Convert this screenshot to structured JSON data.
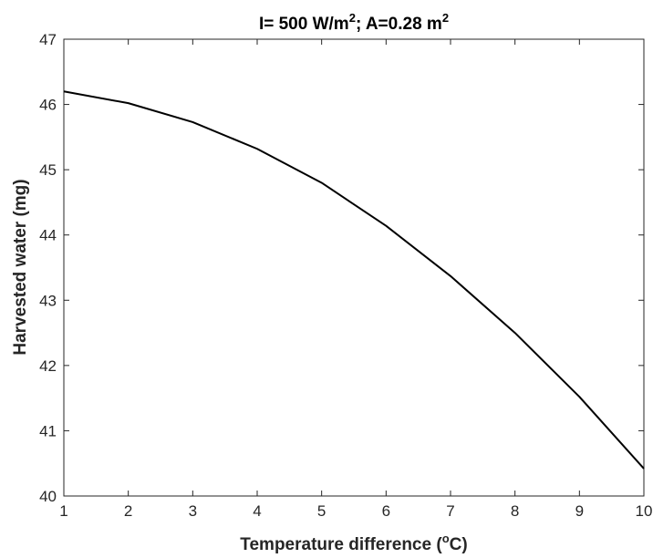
{
  "chart_data": {
    "type": "line",
    "title": {
      "p1": "I= 500 W/m",
      "p1_sup": "2",
      "p2": "; A=0.28 m",
      "p2_sup": "2"
    },
    "xlabel": {
      "pre": "Temperature difference (",
      "sup": "o",
      "post": "C)"
    },
    "ylabel": "Harvested water (mg)",
    "xlim": [
      1,
      10
    ],
    "ylim": [
      40,
      47
    ],
    "xticks": [
      1,
      2,
      3,
      4,
      5,
      6,
      7,
      8,
      9,
      10
    ],
    "yticks": [
      40,
      41,
      42,
      43,
      44,
      45,
      46,
      47
    ],
    "grid": false,
    "series": [
      {
        "color": "#000000",
        "x": [
          1,
          2,
          3,
          4,
          5,
          6,
          7,
          8,
          9,
          10
        ],
        "y": [
          46.2,
          46.02,
          45.73,
          45.32,
          44.8,
          44.14,
          43.37,
          42.5,
          41.52,
          40.42
        ]
      }
    ]
  }
}
